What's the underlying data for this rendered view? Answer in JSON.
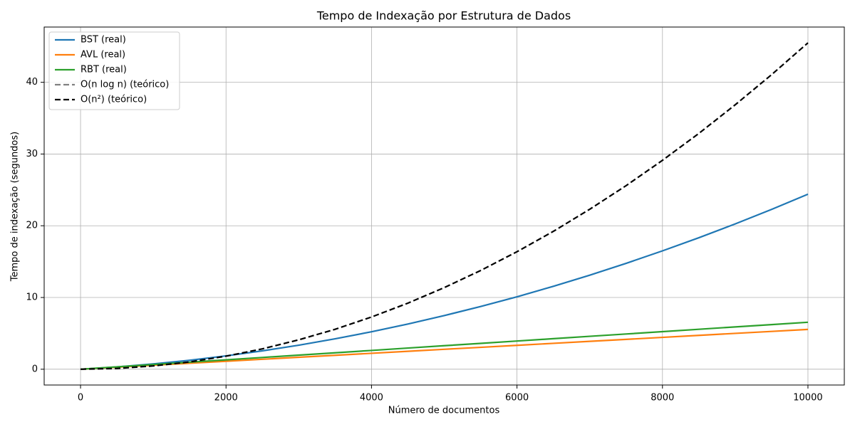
{
  "chart_data": {
    "type": "line",
    "title": "Tempo de Indexação por Estrutura de Dados",
    "xlabel": "Número de documentos",
    "ylabel": "Tempo de indexação (segundos)",
    "x": [
      0,
      500,
      1000,
      1500,
      2000,
      2500,
      3000,
      3500,
      4000,
      4500,
      5000,
      5500,
      6000,
      6500,
      7000,
      7500,
      8000,
      8500,
      9000,
      9500,
      10000
    ],
    "series": [
      {
        "name": "BST (real)",
        "color": "#1f77b4",
        "linestyle": "solid",
        "values": [
          0,
          0.32,
          0.74,
          1.25,
          1.86,
          2.56,
          3.35,
          4.24,
          5.22,
          6.3,
          7.48,
          8.74,
          10.1,
          11.56,
          13.11,
          14.76,
          16.5,
          18.33,
          20.26,
          22.28,
          24.4
        ]
      },
      {
        "name": "AVL (real)",
        "color": "#ff7f0e",
        "linestyle": "solid",
        "values": [
          0,
          0.28,
          0.56,
          0.83,
          1.11,
          1.39,
          1.67,
          1.94,
          2.22,
          2.5,
          2.78,
          3.05,
          3.33,
          3.61,
          3.89,
          4.16,
          4.44,
          4.72,
          5.0,
          5.27,
          5.55
        ]
      },
      {
        "name": "RBT (real)",
        "color": "#2ca02c",
        "linestyle": "solid",
        "values": [
          0,
          0.33,
          0.66,
          0.98,
          1.31,
          1.64,
          1.97,
          2.29,
          2.62,
          2.95,
          3.28,
          3.6,
          3.93,
          4.26,
          4.59,
          4.91,
          5.24,
          5.57,
          5.9,
          6.22,
          6.55
        ]
      },
      {
        "name": "O(n log n) (teórico)",
        "color": "#808080",
        "linestyle": "dashed",
        "values": [
          null,
          null,
          null,
          null,
          null,
          null,
          null,
          null,
          null,
          null,
          null,
          null,
          null,
          null,
          null,
          null,
          null,
          null,
          null,
          null,
          null
        ]
      },
      {
        "name": "O(n²) (teórico)",
        "color": "#000000",
        "linestyle": "dashed",
        "values": [
          0,
          0.11,
          0.46,
          1.02,
          1.82,
          2.84,
          4.1,
          5.57,
          7.28,
          9.21,
          11.38,
          13.76,
          16.38,
          19.22,
          22.3,
          25.59,
          29.12,
          32.87,
          36.86,
          41.06,
          45.5
        ]
      }
    ],
    "xlim": [
      -500,
      10500
    ],
    "ylim": [
      -2.2,
      47.7
    ],
    "xticks": [
      0,
      2000,
      4000,
      6000,
      8000,
      10000
    ],
    "yticks": [
      0,
      10,
      20,
      30,
      40
    ],
    "grid": true,
    "legend": "upper left"
  }
}
